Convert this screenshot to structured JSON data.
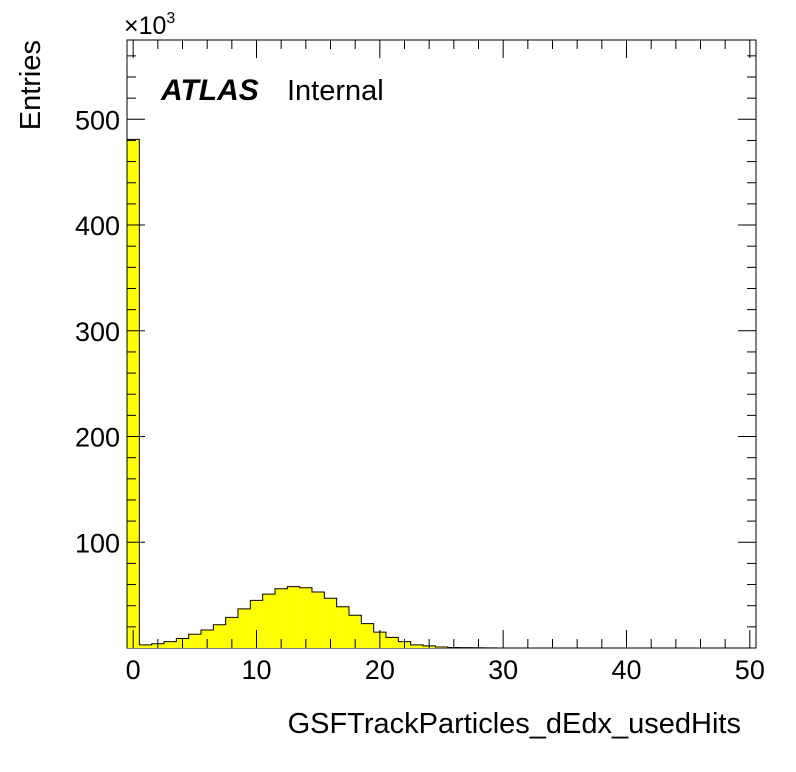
{
  "chart_data": {
    "type": "bar",
    "xlabel": "GSFTrackParticles_dEdx_usedHits",
    "ylabel": "Entries",
    "y_multiplier": "×10",
    "y_multiplier_exp": "3",
    "atlas_label": "ATLAS",
    "atlas_sub": "Internal",
    "xlim": [
      -0.5,
      50.5
    ],
    "ylim": [
      0,
      575
    ],
    "x_ticks": [
      "0",
      "10",
      "20",
      "30",
      "40",
      "50"
    ],
    "y_ticks": [
      "100",
      "200",
      "300",
      "400",
      "500"
    ],
    "bin_width": 1,
    "bin_centers": [
      0,
      1,
      2,
      3,
      4,
      5,
      6,
      7,
      8,
      9,
      10,
      11,
      12,
      13,
      14,
      15,
      16,
      17,
      18,
      19,
      20,
      21,
      22,
      23,
      24,
      25,
      26,
      27,
      28,
      29,
      30,
      31,
      32,
      33,
      34,
      35,
      36,
      37,
      38,
      39,
      40,
      41,
      42,
      43,
      44,
      45,
      46,
      47,
      48,
      49,
      50
    ],
    "values": [
      481,
      3,
      4,
      6,
      9,
      13,
      17,
      22,
      29,
      37,
      45,
      51,
      56,
      58,
      57,
      53,
      47,
      39,
      31,
      23,
      15,
      10,
      6,
      3,
      2,
      1,
      0.5,
      0.3,
      0.2,
      0.1,
      0,
      0,
      0,
      0,
      0,
      0,
      0,
      0,
      0,
      0,
      0,
      0,
      0,
      0,
      0,
      0,
      0,
      0,
      0,
      0,
      0
    ],
    "fill_color": "#ffff00",
    "line_color": "#000000",
    "grid": false
  }
}
